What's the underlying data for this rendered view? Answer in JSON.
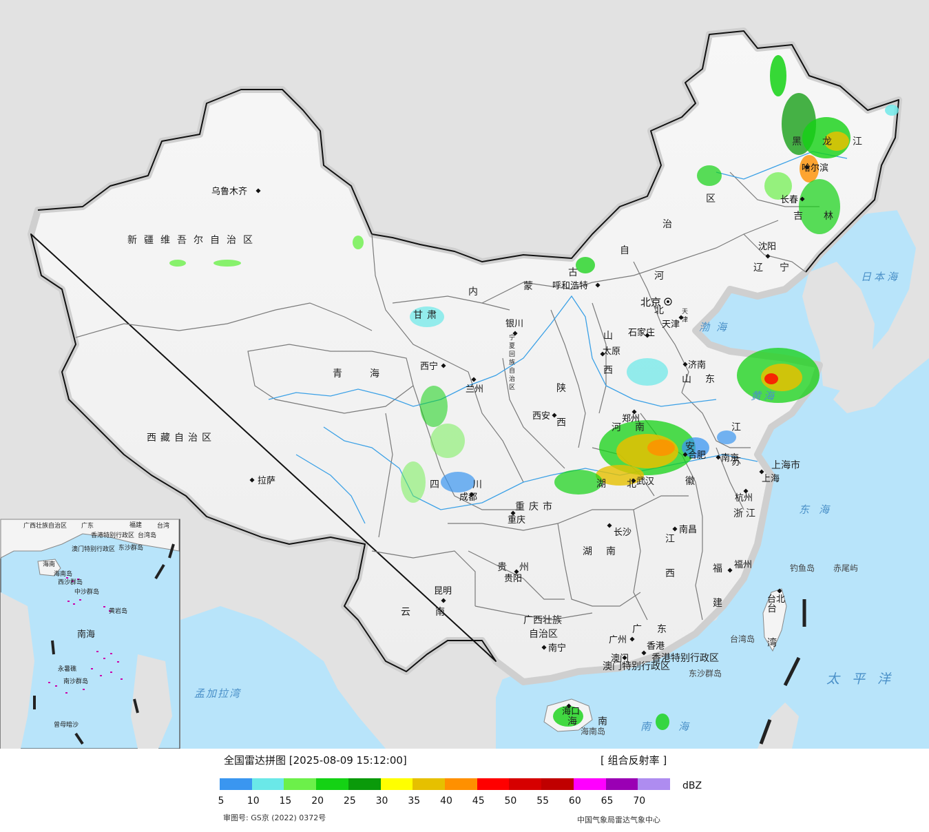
{
  "legend": {
    "title": "全国雷达拼图 [2025-08-09 15:12:00]",
    "product": "[ 组合反射率 ]",
    "unit": "dBZ",
    "ticks": [
      "5",
      "10",
      "15",
      "20",
      "25",
      "30",
      "35",
      "40",
      "45",
      "50",
      "55",
      "60",
      "65",
      "70"
    ],
    "colors": [
      "#3a96f0",
      "#6ae8e8",
      "#6cf04a",
      "#14d214",
      "#0a9a0a",
      "#ffff00",
      "#e6c000",
      "#ff9000",
      "#ff0000",
      "#d60000",
      "#c00000",
      "#ff00ff",
      "#9a00b4",
      "#ae8cf0"
    ],
    "approval": "审图号: GS京 (2022) 0372号",
    "credit": "中国气象局雷达气象中心"
  },
  "colors": {
    "sea": "#b8e4fa",
    "land_in": "#f4f4f4",
    "land_out": "#e2e2e2",
    "border": "#111111",
    "province": "#808080",
    "river": "#3aa0e6"
  },
  "regions": [
    {
      "name": "新疆维吾尔自治区",
      "type": "region"
    },
    {
      "name": "西藏自治区",
      "type": "region"
    },
    {
      "name": "青海",
      "type": "region"
    },
    {
      "name": "甘肃",
      "type": "region"
    },
    {
      "name": "内蒙古自治区",
      "type": "region"
    },
    {
      "name": "黑龙江",
      "type": "region"
    },
    {
      "name": "吉林",
      "type": "region"
    },
    {
      "name": "辽宁",
      "type": "region"
    },
    {
      "name": "河北",
      "type": "region"
    },
    {
      "name": "山西",
      "type": "region"
    },
    {
      "name": "陕西",
      "type": "region"
    },
    {
      "name": "宁夏回族自治区",
      "type": "region"
    },
    {
      "name": "山东",
      "type": "region"
    },
    {
      "name": "河南",
      "type": "region"
    },
    {
      "name": "江苏",
      "type": "region"
    },
    {
      "name": "安徽",
      "type": "region"
    },
    {
      "name": "湖北",
      "type": "region"
    },
    {
      "name": "四川",
      "type": "region"
    },
    {
      "name": "重庆市",
      "type": "region"
    },
    {
      "name": "上海市",
      "type": "region"
    },
    {
      "name": "浙江",
      "type": "region"
    },
    {
      "name": "江西",
      "type": "region"
    },
    {
      "name": "湖南",
      "type": "region"
    },
    {
      "name": "贵州",
      "type": "region"
    },
    {
      "name": "云南",
      "type": "region"
    },
    {
      "name": "福建",
      "type": "region"
    },
    {
      "name": "台湾",
      "type": "region"
    },
    {
      "name": "广西壮族自治区",
      "type": "region"
    },
    {
      "name": "广东",
      "type": "region"
    },
    {
      "name": "海南",
      "type": "region"
    },
    {
      "name": "香港特别行政区",
      "type": "region"
    },
    {
      "name": "澳门特别行政区",
      "type": "region"
    },
    {
      "name": "天津",
      "type": "region"
    }
  ],
  "cities": [
    {
      "name": "北京",
      "capital": true
    },
    {
      "name": "乌鲁木齐"
    },
    {
      "name": "拉萨"
    },
    {
      "name": "西宁"
    },
    {
      "name": "兰州"
    },
    {
      "name": "银川"
    },
    {
      "name": "呼和浩特"
    },
    {
      "name": "哈尔滨"
    },
    {
      "name": "长春"
    },
    {
      "name": "沈阳"
    },
    {
      "name": "天津"
    },
    {
      "name": "石家庄"
    },
    {
      "name": "太原"
    },
    {
      "name": "济南"
    },
    {
      "name": "郑州"
    },
    {
      "name": "西安"
    },
    {
      "name": "合肥"
    },
    {
      "name": "南京"
    },
    {
      "name": "上海"
    },
    {
      "name": "杭州"
    },
    {
      "name": "武汉"
    },
    {
      "name": "成都"
    },
    {
      "name": "重庆"
    },
    {
      "name": "长沙"
    },
    {
      "name": "南昌"
    },
    {
      "name": "福州"
    },
    {
      "name": "台北"
    },
    {
      "name": "贵阳"
    },
    {
      "name": "昆明"
    },
    {
      "name": "南宁"
    },
    {
      "name": "广州"
    },
    {
      "name": "澳门"
    },
    {
      "name": "香港"
    },
    {
      "name": "海口"
    }
  ],
  "seas": [
    "日本海",
    "渤海",
    "黄海",
    "东海",
    "太平洋",
    "南海",
    "孟加拉湾"
  ],
  "islands": [
    "钓鱼岛",
    "赤尾屿",
    "台湾岛",
    "东沙群岛",
    "海南岛"
  ],
  "inset": {
    "labels": [
      "广西壮族自治区",
      "广东",
      "福建",
      "台湾",
      "香港特别行政区",
      "澳门特别行政区",
      "海南",
      "东沙群岛",
      "西沙群岛",
      "中沙群岛",
      "黄岩岛",
      "南海",
      "南沙群岛",
      "永暑礁",
      "曾母暗沙",
      "台湾岛",
      "海南岛"
    ]
  }
}
